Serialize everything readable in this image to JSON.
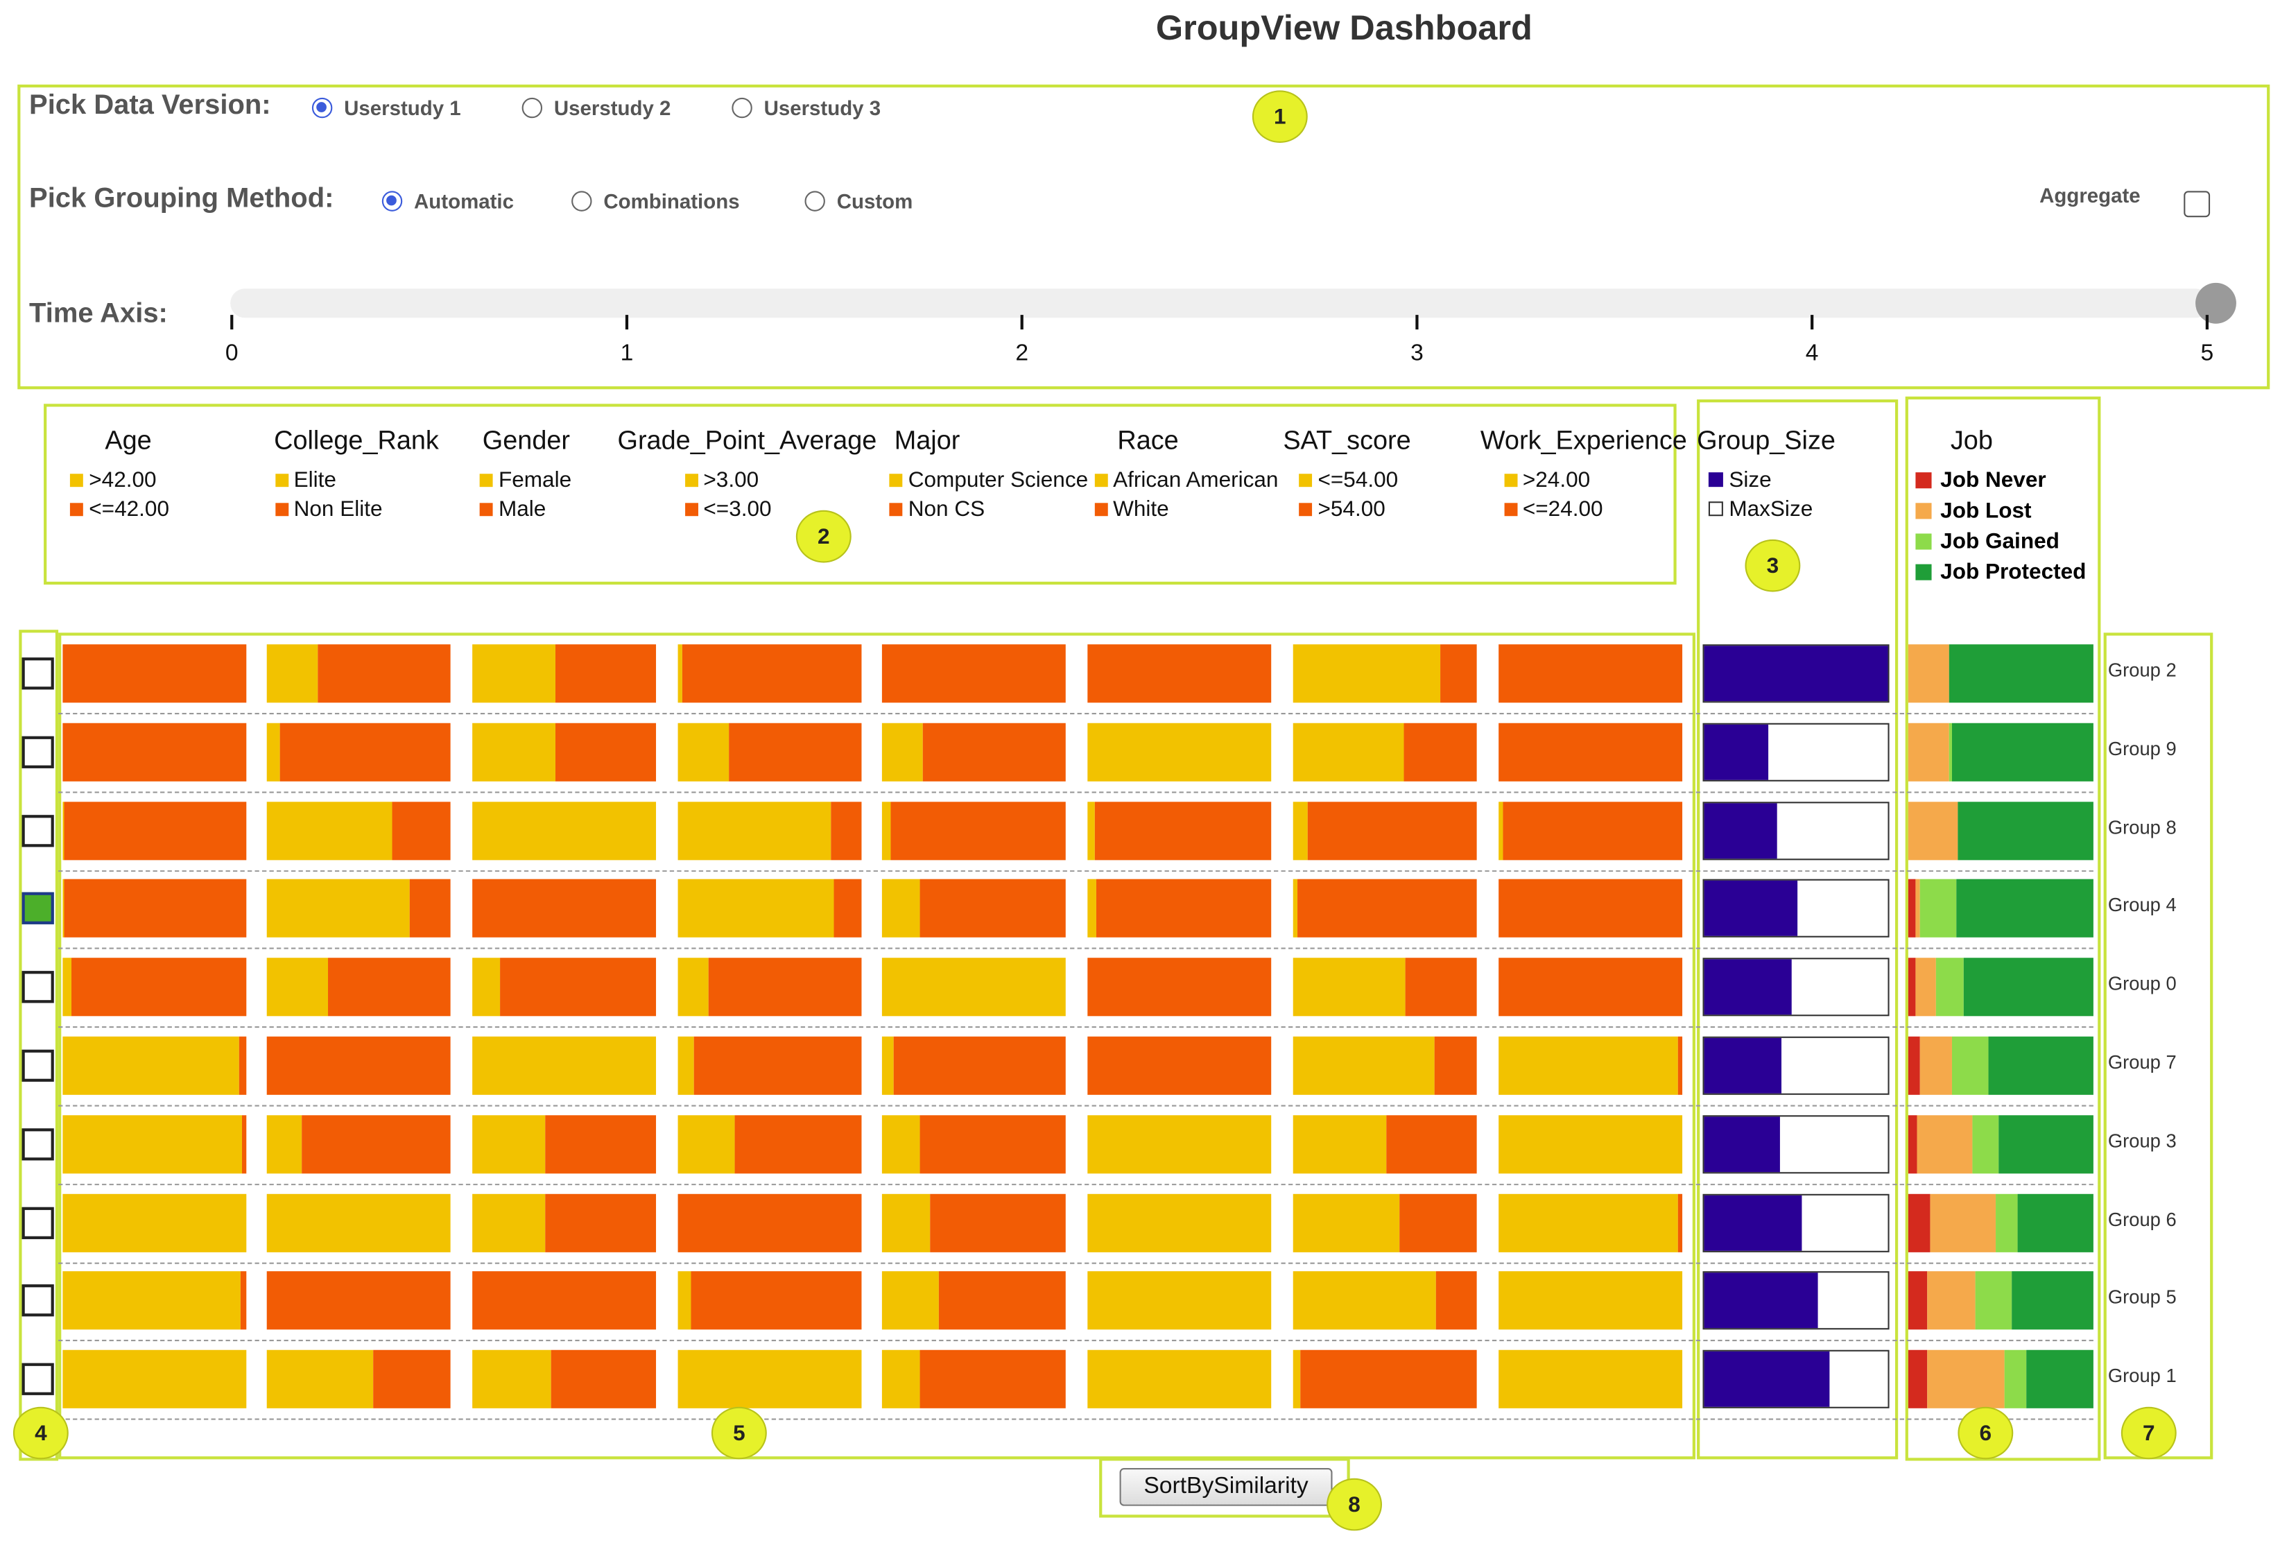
{
  "title": "GroupView Dashboard",
  "controls": {
    "data_version_label": "Pick Data Version:",
    "data_versions": [
      {
        "label": "Userstudy 1",
        "selected": true
      },
      {
        "label": "Userstudy 2",
        "selected": false
      },
      {
        "label": "Userstudy 3",
        "selected": false
      }
    ],
    "grouping_label": "Pick Grouping Method:",
    "grouping_methods": [
      {
        "label": "Automatic",
        "selected": true
      },
      {
        "label": "Combinations",
        "selected": false
      },
      {
        "label": "Custom",
        "selected": false
      }
    ],
    "aggregate_label": "Aggregate",
    "aggregate_checked": false,
    "time_axis_label": "Time Axis:",
    "time_ticks": [
      "0",
      "1",
      "2",
      "3",
      "4",
      "5"
    ],
    "time_value": 5
  },
  "legend": {
    "attributes": [
      {
        "name": "Age",
        "items": [
          ">42.00",
          "<=42.00"
        ]
      },
      {
        "name": "College_Rank",
        "items": [
          "Elite",
          "Non Elite"
        ]
      },
      {
        "name": "Gender",
        "items": [
          "Female",
          "Male"
        ]
      },
      {
        "name": "Grade_Point_Average",
        "items": [
          ">3.00",
          "<=3.00"
        ]
      },
      {
        "name": "Major",
        "items": [
          "Computer Science",
          "Non CS"
        ]
      },
      {
        "name": "Race",
        "items": [
          "African American",
          "White"
        ]
      },
      {
        "name": "SAT_score",
        "items": [
          "<=54.00",
          ">54.00"
        ]
      },
      {
        "name": "Work_Experience",
        "items": [
          ">24.00",
          "<=24.00"
        ]
      }
    ],
    "group_size": {
      "name": "Group_Size",
      "items": [
        "Size",
        "MaxSize"
      ]
    },
    "job": {
      "name": "Job",
      "items": [
        "Job Never",
        "Job Lost",
        "Job Gained",
        "Job Protected"
      ]
    }
  },
  "colors": {
    "yellow": "#f2c200",
    "orange": "#f25c05",
    "size": "#2a0095",
    "job_never": "#d42a1e",
    "job_lost": "#f5a94b",
    "job_gained": "#8ddb4a",
    "job_protected": "#1f9e38",
    "panel_border": "#c9e33d"
  },
  "groups": [
    {
      "label": "Group 2",
      "checked": false,
      "attrs": [
        0.0,
        0.28,
        0.45,
        0.02,
        0.0,
        0.0,
        0.8,
        0.0
      ],
      "size": 1.0,
      "job": [
        0.0,
        0.22,
        0.0,
        0.78
      ]
    },
    {
      "label": "Group 9",
      "checked": false,
      "attrs": [
        0.0,
        0.07,
        0.45,
        0.28,
        0.22,
        1.0,
        0.6,
        0.0
      ],
      "size": 0.35,
      "job": [
        0.0,
        0.22,
        0.02,
        0.76
      ]
    },
    {
      "label": "Group 8",
      "checked": false,
      "attrs": [
        0.01,
        0.68,
        1.0,
        0.83,
        0.05,
        0.04,
        0.08,
        0.02
      ],
      "size": 0.4,
      "job": [
        0.0,
        0.27,
        0.0,
        0.73
      ]
    },
    {
      "label": "Group 4",
      "checked": true,
      "attrs": [
        0.01,
        0.78,
        0.0,
        0.85,
        0.21,
        0.05,
        0.02,
        0.0
      ],
      "size": 0.51,
      "job": [
        0.04,
        0.02,
        0.2,
        0.74
      ]
    },
    {
      "label": "Group 0",
      "checked": false,
      "attrs": [
        0.05,
        0.33,
        0.15,
        0.17,
        1.0,
        0.0,
        0.61,
        0.0
      ],
      "size": 0.48,
      "job": [
        0.04,
        0.11,
        0.15,
        0.7
      ]
    },
    {
      "label": "Group 7",
      "checked": false,
      "attrs": [
        0.96,
        0.0,
        1.0,
        0.09,
        0.06,
        0.0,
        0.77,
        0.98
      ],
      "size": 0.42,
      "job": [
        0.06,
        0.18,
        0.19,
        0.57
      ]
    },
    {
      "label": "Group 3",
      "checked": false,
      "attrs": [
        0.98,
        0.19,
        0.4,
        0.31,
        0.21,
        1.0,
        0.51,
        1.0
      ],
      "size": 0.41,
      "job": [
        0.05,
        0.3,
        0.14,
        0.51
      ]
    },
    {
      "label": "Group 6",
      "checked": false,
      "attrs": [
        1.0,
        1.0,
        0.4,
        0.0,
        0.26,
        1.0,
        0.58,
        0.98
      ],
      "size": 0.53,
      "job": [
        0.12,
        0.35,
        0.12,
        0.41
      ]
    },
    {
      "label": "Group 5",
      "checked": false,
      "attrs": [
        0.97,
        0.0,
        0.0,
        0.07,
        0.31,
        1.0,
        0.78,
        1.0
      ],
      "size": 0.62,
      "job": [
        0.1,
        0.26,
        0.2,
        0.44
      ]
    },
    {
      "label": "Group 1",
      "checked": false,
      "attrs": [
        1.0,
        0.58,
        0.43,
        1.0,
        0.21,
        1.0,
        0.04,
        1.0
      ],
      "size": 0.68,
      "job": [
        0.1,
        0.42,
        0.12,
        0.36
      ]
    }
  ],
  "sort_button_label": "SortBySimilarity",
  "badges": [
    "1",
    "2",
    "3",
    "4",
    "5",
    "6",
    "7",
    "8"
  ]
}
